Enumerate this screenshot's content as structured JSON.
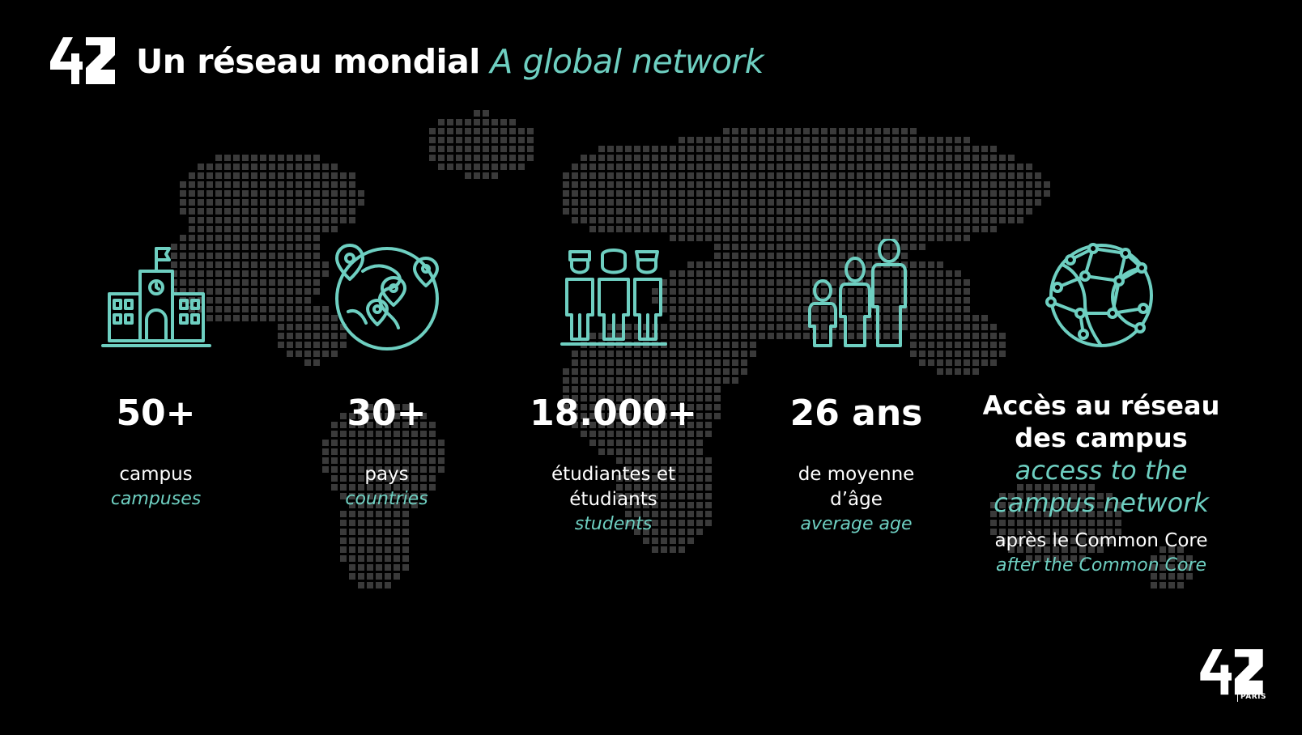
{
  "title": {
    "fr": "Un réseau mondial",
    "en": "A global network"
  },
  "branding": {
    "logo": "42",
    "location": "PARIS"
  },
  "colors": {
    "accent": "#6ecfc1",
    "background": "#000000",
    "map_dots": "#3a3a3a"
  },
  "stats": [
    {
      "icon": "school-building-icon",
      "value": "50+",
      "fr": "campus",
      "en": "campuses"
    },
    {
      "icon": "globe-location-pins-icon",
      "value": "30+",
      "fr": "pays",
      "en": "countries"
    },
    {
      "icon": "students-group-icon",
      "value": "18.000+",
      "fr_line1": "étudiantes et",
      "fr_line2": "étudiants",
      "en": "students"
    },
    {
      "icon": "family-age-icon",
      "value": "26 ans",
      "fr_line1": "de moyenne",
      "fr_line2": "d’âge",
      "en": "average age"
    },
    {
      "icon": "network-globe-icon",
      "title_fr_line1": "Accès au réseau",
      "title_fr_line2": "des campus",
      "title_en_line1": "access to the",
      "title_en_line2": "campus network",
      "after_fr": "après le Common Core",
      "after_en": "after the Common Core"
    }
  ]
}
